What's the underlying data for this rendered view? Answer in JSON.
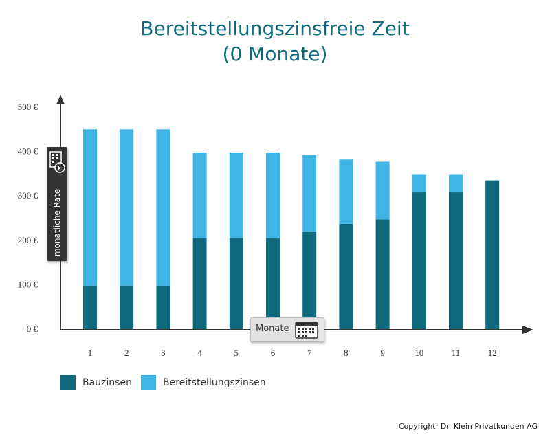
{
  "header": {
    "title_line1": "Bereitstellungszinsfreie Zeit",
    "title_line2": "(0 Monate)"
  },
  "axis_labels": {
    "y": "monatliche Rate",
    "x": "Monate",
    "y_icon": "calculator-euro-icon",
    "x_icon": "calendar-icon"
  },
  "legend": {
    "items": [
      {
        "label": "Bauzinsen",
        "color": "#0e6a7c"
      },
      {
        "label": "Bereitstellungszinsen",
        "color": "#3eb5e5"
      }
    ]
  },
  "copyright": "Copyright: Dr. Klein Privatkunden AG",
  "chart_data": {
    "type": "bar",
    "stacked": true,
    "categories": [
      "1",
      "2",
      "3",
      "4",
      "5",
      "6",
      "7",
      "8",
      "9",
      "10",
      "11",
      "12"
    ],
    "series": [
      {
        "name": "Bauzinsen",
        "color": "#0e6a7c",
        "values": [
          98,
          98,
          98,
          205,
          205,
          205,
          220,
          237,
          247,
          308,
          308,
          335
        ]
      },
      {
        "name": "Bereitstellungszinsen",
        "color": "#3eb5e5",
        "values": [
          352,
          352,
          352,
          193,
          193,
          193,
          172,
          145,
          130,
          41,
          41,
          0
        ]
      }
    ],
    "y_ticks": [
      "0 €",
      "100 €",
      "200 €",
      "300 €",
      "400 €",
      "500 €"
    ],
    "ylim": [
      0,
      500
    ],
    "grid": false
  }
}
